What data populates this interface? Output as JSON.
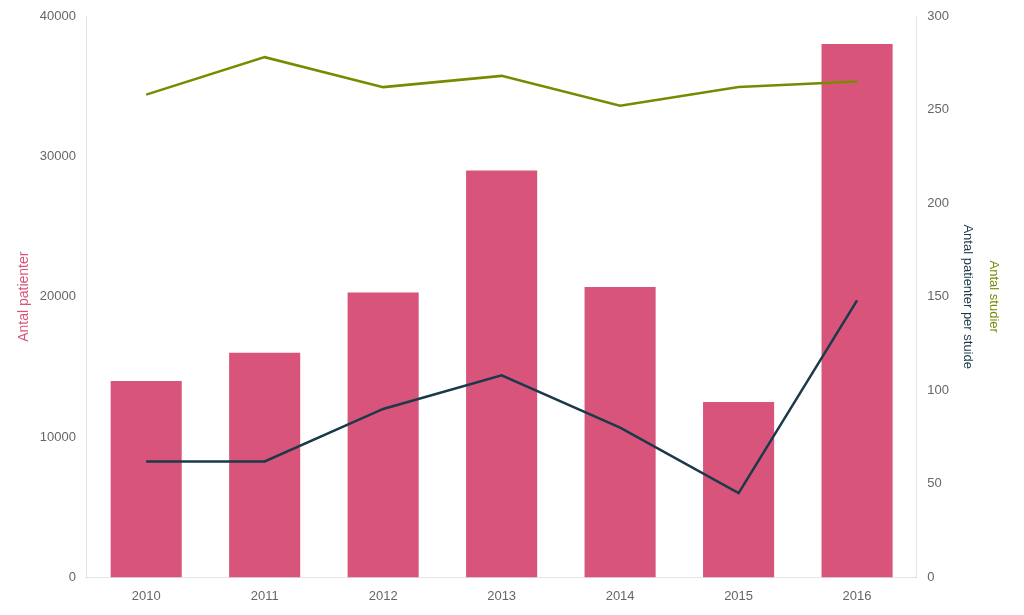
{
  "chart_data": {
    "type": "bar",
    "categories": [
      "2010",
      "2011",
      "2012",
      "2013",
      "2014",
      "2015",
      "2016"
    ],
    "series": [
      {
        "name": "Antal patienter",
        "type": "bar",
        "color": "#d9547a",
        "axis": "y",
        "values": [
          14000,
          16000,
          20300,
          29000,
          20700,
          12500,
          38000
        ]
      },
      {
        "name": "Antal patienter per stuide",
        "type": "line",
        "color": "#1a3a4a",
        "axis": "y2",
        "values": [
          62,
          62,
          90,
          108,
          80,
          45,
          148
        ]
      },
      {
        "name": "Antal studier",
        "type": "line",
        "color": "#7a8a00",
        "axis": "y2",
        "values": [
          258,
          278,
          262,
          268,
          252,
          262,
          265
        ]
      }
    ],
    "ylabel": "Antal patienter",
    "y2label": [
      "Antal patienter per stuide",
      "Antal studier"
    ],
    "ylim": [
      0,
      40000
    ],
    "yticks": [
      0,
      10000,
      20000,
      30000,
      40000
    ],
    "y2lim": [
      0,
      300
    ],
    "y2ticks": [
      0,
      50,
      100,
      150,
      200,
      250,
      300
    ],
    "grid": false
  }
}
